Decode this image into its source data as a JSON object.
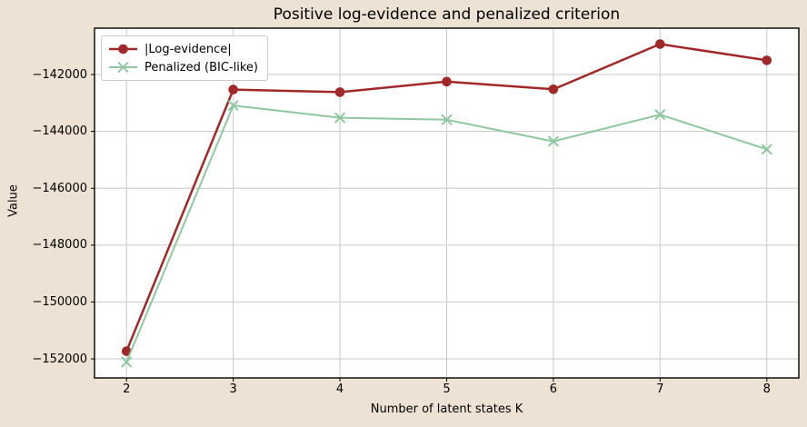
{
  "chart_data": {
    "type": "line",
    "title": "Positive log-evidence and penalized criterion",
    "xlabel": "Number of latent states K",
    "ylabel": "Value",
    "x": [
      2,
      3,
      4,
      5,
      6,
      7,
      8
    ],
    "series": [
      {
        "name": "|Log-evidence|",
        "marker": "circle",
        "color": "#a02828",
        "values": [
          -151730,
          -142530,
          -142620,
          -142250,
          -142520,
          -140930,
          -141500
        ]
      },
      {
        "name": "Penalized (BIC-like)",
        "marker": "x",
        "color": "#8fc79f",
        "values": [
          -152110,
          -143090,
          -143520,
          -143590,
          -144350,
          -143410,
          -144630
        ]
      }
    ],
    "xlim": [
      1.7,
      8.3
    ],
    "ylim": [
      -152670,
      -140370
    ],
    "x_ticks": [
      {
        "value": 2,
        "label": "2"
      },
      {
        "value": 3,
        "label": "3"
      },
      {
        "value": 4,
        "label": "4"
      },
      {
        "value": 5,
        "label": "5"
      },
      {
        "value": 6,
        "label": "6"
      },
      {
        "value": 7,
        "label": "7"
      },
      {
        "value": 8,
        "label": "8"
      }
    ],
    "y_ticks": [
      {
        "value": -142000,
        "label": "−142000"
      },
      {
        "value": -144000,
        "label": "−144000"
      },
      {
        "value": -146000,
        "label": "−146000"
      },
      {
        "value": -148000,
        "label": "−148000"
      },
      {
        "value": -150000,
        "label": "−150000"
      },
      {
        "value": -152000,
        "label": "−152000"
      }
    ],
    "grid": true,
    "legend_position": "upper-left",
    "colors": {
      "figure_bg": "#ede2d3",
      "plot_bg": "#ffffff",
      "grid": "#c9c9c9",
      "spine": "#000000",
      "tick": "#000000"
    }
  }
}
